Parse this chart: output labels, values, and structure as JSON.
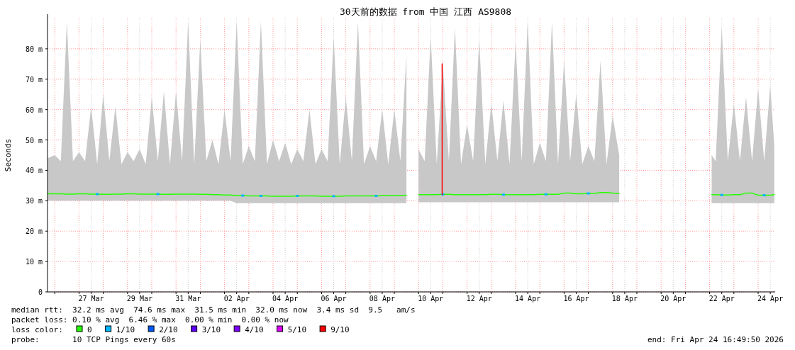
{
  "chart_data": {
    "type": "line",
    "title": "30天前的数据 from 中国 江西 AS9808",
    "ylabel": "Seconds",
    "legend_title": "loss color:",
    "legend": "bottom",
    "grid": true,
    "xlim": [
      "2026-03-25T16:50",
      "2026-04-24T16:50"
    ],
    "ylim": [
      0,
      90
    ],
    "yticks": [
      0,
      {
        "value": 10,
        "label": "10 m"
      },
      {
        "value": 20,
        "label": "20 m"
      },
      {
        "value": 30,
        "label": "30 m"
      },
      {
        "value": 40,
        "label": "40 m"
      },
      {
        "value": 50,
        "label": "50 m"
      },
      {
        "value": 60,
        "label": "60 m"
      },
      {
        "value": 70,
        "label": "70 m"
      },
      {
        "value": 80,
        "label": "80 m"
      }
    ],
    "xticks": [
      {
        "value": "2026-03-26",
        "label": null
      },
      {
        "value": "2026-03-27",
        "label": null
      },
      {
        "value": "2026-03-27T12:00",
        "label": "27 Mar"
      },
      {
        "value": "2026-03-28",
        "label": null
      },
      {
        "value": "2026-03-29",
        "label": null
      },
      {
        "value": "2026-03-29T12:00",
        "label": "29 Mar"
      },
      {
        "value": "2026-03-30",
        "label": null
      },
      {
        "value": "2026-03-31",
        "label": null
      },
      {
        "value": "2026-03-31T12:00",
        "label": "31 Mar"
      },
      {
        "value": "2026-04-01",
        "label": null
      },
      {
        "value": "2026-04-02",
        "label": null
      },
      {
        "value": "2026-04-02T12:00",
        "label": "02 Apr"
      },
      {
        "value": "2026-04-03",
        "label": null
      },
      {
        "value": "2026-04-04",
        "label": null
      },
      {
        "value": "2026-04-04T12:00",
        "label": "04 Apr"
      },
      {
        "value": "2026-04-05",
        "label": null
      },
      {
        "value": "2026-04-06",
        "label": null
      },
      {
        "value": "2026-04-06T12:00",
        "label": "06 Apr"
      },
      {
        "value": "2026-04-07",
        "label": null
      },
      {
        "value": "2026-04-08",
        "label": null
      },
      {
        "value": "2026-04-08T12:00",
        "label": "08 Apr"
      },
      {
        "value": "2026-04-09",
        "label": null
      },
      {
        "value": "2026-04-10",
        "label": null
      },
      {
        "value": "2026-04-10T12:00",
        "label": "10 Apr"
      },
      {
        "value": "2026-04-11",
        "label": null
      },
      {
        "value": "2026-04-12",
        "label": null
      },
      {
        "value": "2026-04-12T12:00",
        "label": "12 Apr"
      },
      {
        "value": "2026-04-13",
        "label": null
      },
      {
        "value": "2026-04-14",
        "label": null
      },
      {
        "value": "2026-04-14T12:00",
        "label": "14 Apr"
      },
      {
        "value": "2026-04-15",
        "label": null
      },
      {
        "value": "2026-04-16",
        "label": null
      },
      {
        "value": "2026-04-16T12:00",
        "label": "16 Apr"
      },
      {
        "value": "2026-04-17",
        "label": null
      },
      {
        "value": "2026-04-18",
        "label": null
      },
      {
        "value": "2026-04-18T12:00",
        "label": "18 Apr"
      },
      {
        "value": "2026-04-19",
        "label": null
      },
      {
        "value": "2026-04-20",
        "label": null
      },
      {
        "value": "2026-04-20T12:00",
        "label": "20 Apr"
      },
      {
        "value": "2026-04-21",
        "label": null
      },
      {
        "value": "2026-04-22",
        "label": null
      },
      {
        "value": "2026-04-22T12:00",
        "label": "22 Apr"
      },
      {
        "value": "2026-04-23",
        "label": null
      },
      {
        "value": "2026-04-24",
        "label": null
      },
      {
        "value": "2026-04-24T12:00",
        "label": "24 Apr"
      }
    ],
    "series": [
      {
        "name": "0",
        "color": "#26ff00",
        "x": [
          "2026-03-25T17:00",
          "2026-03-26T00:00",
          "2026-03-26T06:00",
          "2026-03-26T12:00",
          "2026-03-26T18:00",
          "2026-03-27T00:00",
          "2026-03-27T06:00",
          "2026-03-27T12:00",
          "2026-03-27T18:00",
          "2026-03-28T00:00",
          "2026-03-28T06:00",
          "2026-03-28T12:00",
          "2026-03-28T18:00",
          "2026-03-29T00:00",
          "2026-03-29T06:00",
          "2026-03-29T12:00",
          "2026-03-29T18:00",
          "2026-03-30T00:00",
          "2026-03-30T06:00",
          "2026-03-30T12:00",
          "2026-03-30T18:00",
          "2026-03-31T00:00",
          "2026-03-31T06:00",
          "2026-03-31T12:00",
          "2026-03-31T18:00",
          "2026-04-01T00:00",
          "2026-04-01T06:00",
          "2026-04-01T12:00",
          "2026-04-01T18:00",
          "2026-04-02T00:00",
          "2026-04-02T06:00",
          "2026-04-02T12:00",
          "2026-04-02T18:00",
          "2026-04-03T00:00",
          "2026-04-03T06:00",
          "2026-04-03T12:00",
          "2026-04-03T18:00",
          "2026-04-04T00:00",
          "2026-04-04T06:00",
          "2026-04-04T12:00",
          "2026-04-04T18:00",
          "2026-04-05T00:00",
          "2026-04-05T06:00",
          "2026-04-05T12:00",
          "2026-04-05T18:00",
          "2026-04-06T00:00",
          "2026-04-06T06:00",
          "2026-04-06T12:00",
          "2026-04-06T18:00",
          "2026-04-07T00:00",
          "2026-04-07T06:00",
          "2026-04-07T12:00",
          "2026-04-07T18:00",
          "2026-04-08T00:00",
          "2026-04-08T06:00",
          "2026-04-08T12:00",
          "2026-04-08T18:00",
          "2026-04-09T00:00",
          "2026-04-09T06:00",
          "2026-04-09T12:00",
          "2026-04-09T16:00",
          "2026-04-10T00:00",
          "2026-04-10T06:00",
          "2026-04-10T12:00",
          "2026-04-10T18:00",
          "2026-04-11T00:00",
          "2026-04-11T06:00",
          "2026-04-11T12:00",
          "2026-04-11T18:00",
          "2026-04-12T00:00",
          "2026-04-12T06:00",
          "2026-04-12T12:00",
          "2026-04-12T18:00",
          "2026-04-13T00:00",
          "2026-04-13T06:00",
          "2026-04-13T12:00",
          "2026-04-13T18:00",
          "2026-04-14T00:00",
          "2026-04-14T06:00",
          "2026-04-14T12:00",
          "2026-04-14T18:00",
          "2026-04-15T00:00",
          "2026-04-15T06:00",
          "2026-04-15T12:00",
          "2026-04-15T18:00",
          "2026-04-16T00:00",
          "2026-04-16T06:00",
          "2026-04-16T12:00",
          "2026-04-16T18:00",
          "2026-04-17T00:00",
          "2026-04-17T06:00",
          "2026-04-17T12:00",
          "2026-04-17T18:00",
          "2026-04-18T00:00",
          "2026-04-18T06:30",
          "2026-04-20T00:00",
          "2026-04-22T02:00",
          "2026-04-22T06:00",
          "2026-04-22T12:00",
          "2026-04-22T18:00",
          "2026-04-23T00:00",
          "2026-04-23T06:00",
          "2026-04-23T12:00",
          "2026-04-23T18:00",
          "2026-04-24T00:00",
          "2026-04-24T06:00",
          "2026-04-24T12:00",
          "2026-04-24T16:00"
        ],
        "values": [
          32.3,
          32.3,
          32.3,
          32.2,
          32.2,
          32.3,
          32.3,
          32.2,
          32.2,
          32.1,
          32.1,
          32.2,
          32.2,
          32.3,
          32.3,
          32.2,
          32.2,
          32.2,
          32.2,
          32.1,
          32.1,
          32.2,
          32.2,
          32.2,
          32.2,
          32.1,
          32.1,
          32.0,
          32.0,
          31.9,
          31.9,
          31.7,
          31.7,
          31.6,
          31.6,
          31.6,
          31.6,
          31.5,
          31.5,
          31.5,
          31.5,
          31.6,
          31.6,
          31.6,
          31.6,
          31.5,
          31.5,
          31.5,
          31.5,
          31.6,
          31.6,
          31.6,
          31.6,
          31.6,
          31.6,
          31.7,
          31.7,
          31.7,
          31.7,
          31.8,
          null,
          32.0,
          32.0,
          32.0,
          32.0,
          32.1,
          32.1,
          32.0,
          32.0,
          32.0,
          32.0,
          32.0,
          32.0,
          32.1,
          32.1,
          32.0,
          32.0,
          32.0,
          32.0,
          32.0,
          32.0,
          32.1,
          32.1,
          32.1,
          32.1,
          32.5,
          32.5,
          32.3,
          32.3,
          32.4,
          32.4,
          32.7,
          32.7,
          32.5,
          32.4,
          null,
          32.0,
          32.0,
          31.9,
          31.9,
          32.0,
          32.0,
          32.5,
          32.5,
          31.8,
          31.8,
          31.8,
          32.0
        ],
        "lower": [
          30,
          30,
          30,
          30,
          30,
          30,
          30,
          30,
          30,
          30,
          30,
          30,
          30,
          30,
          30,
          30,
          30,
          30,
          30,
          30,
          30,
          30,
          30,
          30,
          30,
          30,
          30,
          30,
          30,
          30,
          30,
          29.2,
          29.2,
          29.2,
          29.2,
          29.2,
          29.2,
          29.2,
          29.2,
          29.2,
          29.2,
          29.2,
          29.2,
          29.2,
          29.2,
          29.2,
          29.2,
          29.2,
          29.2,
          29.2,
          29.2,
          29.2,
          29.2,
          29.2,
          29.2,
          29.2,
          29.2,
          29.2,
          29.2,
          29.2,
          null,
          29.5,
          29.5,
          29.5,
          29.5,
          29.5,
          29.5,
          29.5,
          29.5,
          29.5,
          29.5,
          29.5,
          29.5,
          29.5,
          29.5,
          29.5,
          29.5,
          29.5,
          29.5,
          29.5,
          29.5,
          29.5,
          29.5,
          29.5,
          29.5,
          29.5,
          29.5,
          29.5,
          29.5,
          29.5,
          29.5,
          29.5,
          29.5,
          29.5,
          29.5,
          null,
          29.2,
          29.2,
          29.2,
          29.2,
          29.2,
          29.2,
          29.2,
          29.2,
          29.2,
          29.2,
          29.2,
          29.2
        ],
        "upper": [
          44,
          45,
          43,
          89,
          43,
          46,
          43,
          61,
          42,
          65,
          43,
          61,
          42,
          46,
          43,
          47,
          42,
          64,
          43,
          66,
          42,
          66,
          43,
          89,
          42,
          83,
          43,
          50,
          42,
          60,
          43,
          89,
          42,
          48,
          43,
          89,
          42,
          50,
          43,
          49,
          42,
          47,
          43,
          60,
          42,
          47,
          43,
          84,
          42,
          64,
          43,
          89,
          42,
          48,
          43,
          60,
          42,
          60,
          43,
          78,
          null,
          47,
          43,
          84,
          42,
          75,
          43,
          87,
          42,
          55,
          43,
          83,
          42,
          62,
          43,
          63,
          42,
          82,
          43,
          89,
          42,
          49,
          43,
          89,
          42,
          76,
          43,
          65,
          42,
          48,
          43,
          76,
          42,
          58,
          45,
          null,
          45,
          43,
          87,
          43,
          62,
          43,
          64,
          43,
          67,
          43,
          68,
          48
        ]
      },
      {
        "name": "1/10",
        "type": "scatter",
        "marker": "square",
        "color": "#00b8ff",
        "x": [
          "2026-03-27T18:00",
          "2026-03-30T06:00",
          "2026-04-02T18:00",
          "2026-04-03T12:00",
          "2026-04-05T00:00",
          "2026-04-06T12:00",
          "2026-04-08T06:00",
          "2026-04-11T00:00",
          "2026-04-13T12:00",
          "2026-04-15T06:00",
          "2026-04-17T00:00",
          "2026-04-22T12:00",
          "2026-04-24T06:00"
        ],
        "values": [
          32.2,
          32.2,
          31.7,
          31.6,
          31.6,
          31.5,
          31.6,
          32.1,
          32.0,
          32.1,
          32.4,
          31.9,
          31.8
        ]
      },
      {
        "name": "2/10",
        "color": "#0059ff"
      },
      {
        "name": "3/10",
        "color": "#5e00ff"
      },
      {
        "name": "4/10",
        "color": "#7e00ff"
      },
      {
        "name": "5/10",
        "color": "#dd00ff"
      },
      {
        "name": "9/10",
        "color": "#ff0000",
        "x": [
          "2026-04-10T23:20",
          "2026-04-10T23:20"
        ],
        "values": [
          32,
          75
        ]
      }
    ],
    "annotations": [
      "median rtt:  32.2 ms avg  74.6 ms max  31.5 ms min  32.0 ms now  3.4 ms sd  9.5   am/s",
      "packet loss: 0.10 % avg  6.46 % max  0.00 % min  0.00 % now",
      "probe:       10 TCP Pings every 60s",
      "end: Fri Apr 24 16:49:50 2026"
    ]
  }
}
